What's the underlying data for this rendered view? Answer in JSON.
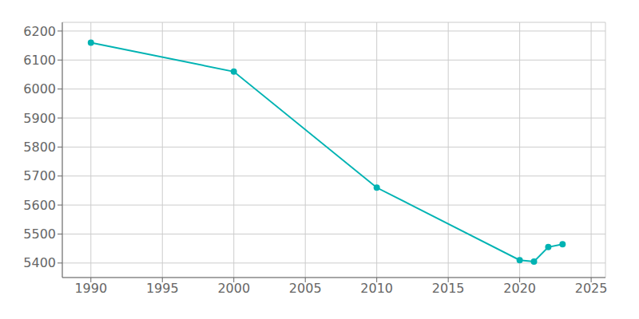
{
  "chart_data": {
    "type": "line",
    "x": [
      1990,
      2000,
      2010,
      2020,
      2021,
      2022,
      2023
    ],
    "values": [
      6160,
      6060,
      5660,
      5410,
      5405,
      5455,
      5465
    ],
    "color": "#00b3b3",
    "marker": "circle",
    "xlim": [
      1988,
      2026
    ],
    "ylim": [
      5350,
      6230
    ],
    "xticks": [
      1990,
      1995,
      2000,
      2005,
      2010,
      2015,
      2020,
      2025
    ],
    "yticks": [
      5400,
      5500,
      5600,
      5700,
      5800,
      5900,
      6000,
      6100,
      6200
    ],
    "grid": true
  }
}
